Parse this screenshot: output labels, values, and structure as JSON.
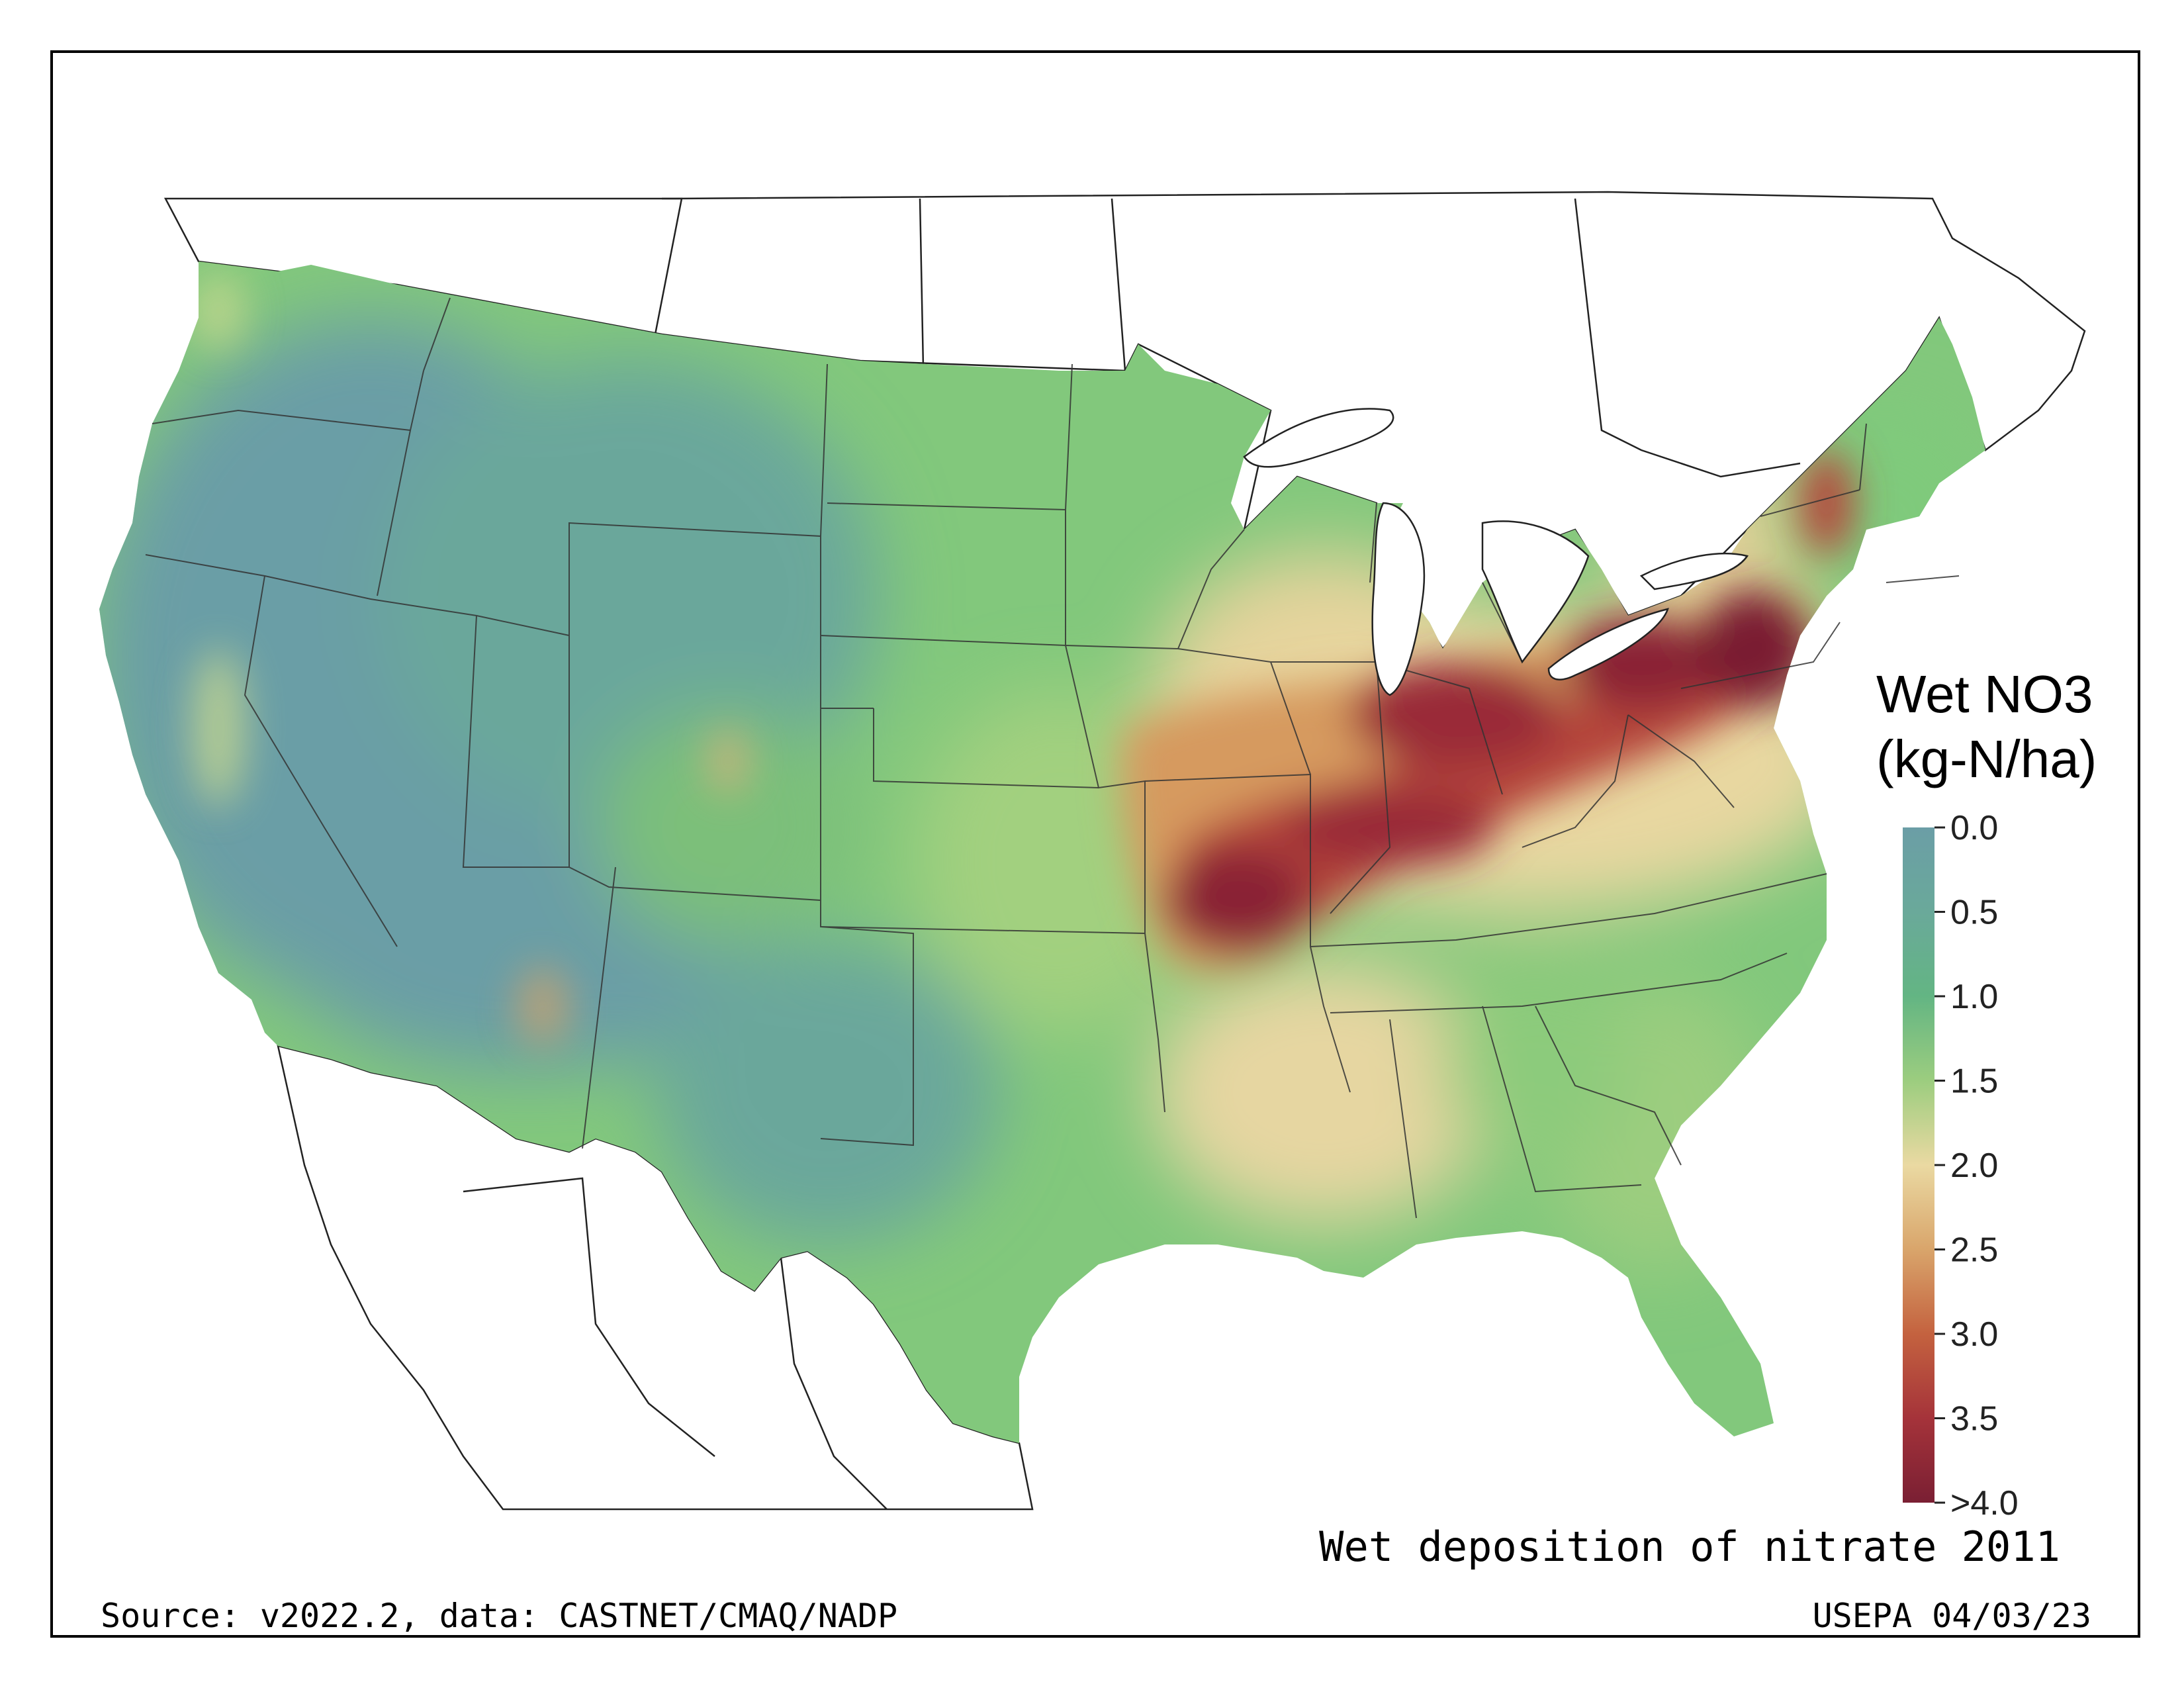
{
  "map": {
    "title": "Wet deposition of nitrate 2011",
    "region": "Contiguous United States",
    "colors": {
      "low": "#6b9ea6",
      "mid_low": "#5cb085",
      "mid": "#8fcf7a",
      "pale": "#ead9a2",
      "orange": "#d8945c",
      "red": "#a8332d",
      "dark": "#7a1f33"
    }
  },
  "legend": {
    "title_line1": "Wet NO3",
    "title_line2": "(kg-N/ha)",
    "ticks": [
      "0.0",
      "0.5",
      "1.0",
      "1.5",
      "2.0",
      "2.5",
      "3.0",
      "3.5",
      ">4.0"
    ],
    "colors": [
      "#6b9ea6",
      "#6aa99a",
      "#63b583",
      "#9ccd7f",
      "#ead9a2",
      "#d9a56b",
      "#c4623f",
      "#a5333a",
      "#7a1f33"
    ]
  },
  "footer": {
    "source": "Source: v2022.2, data: CASTNET/CMAQ/NADP",
    "agency": "USEPA 04/03/23"
  }
}
